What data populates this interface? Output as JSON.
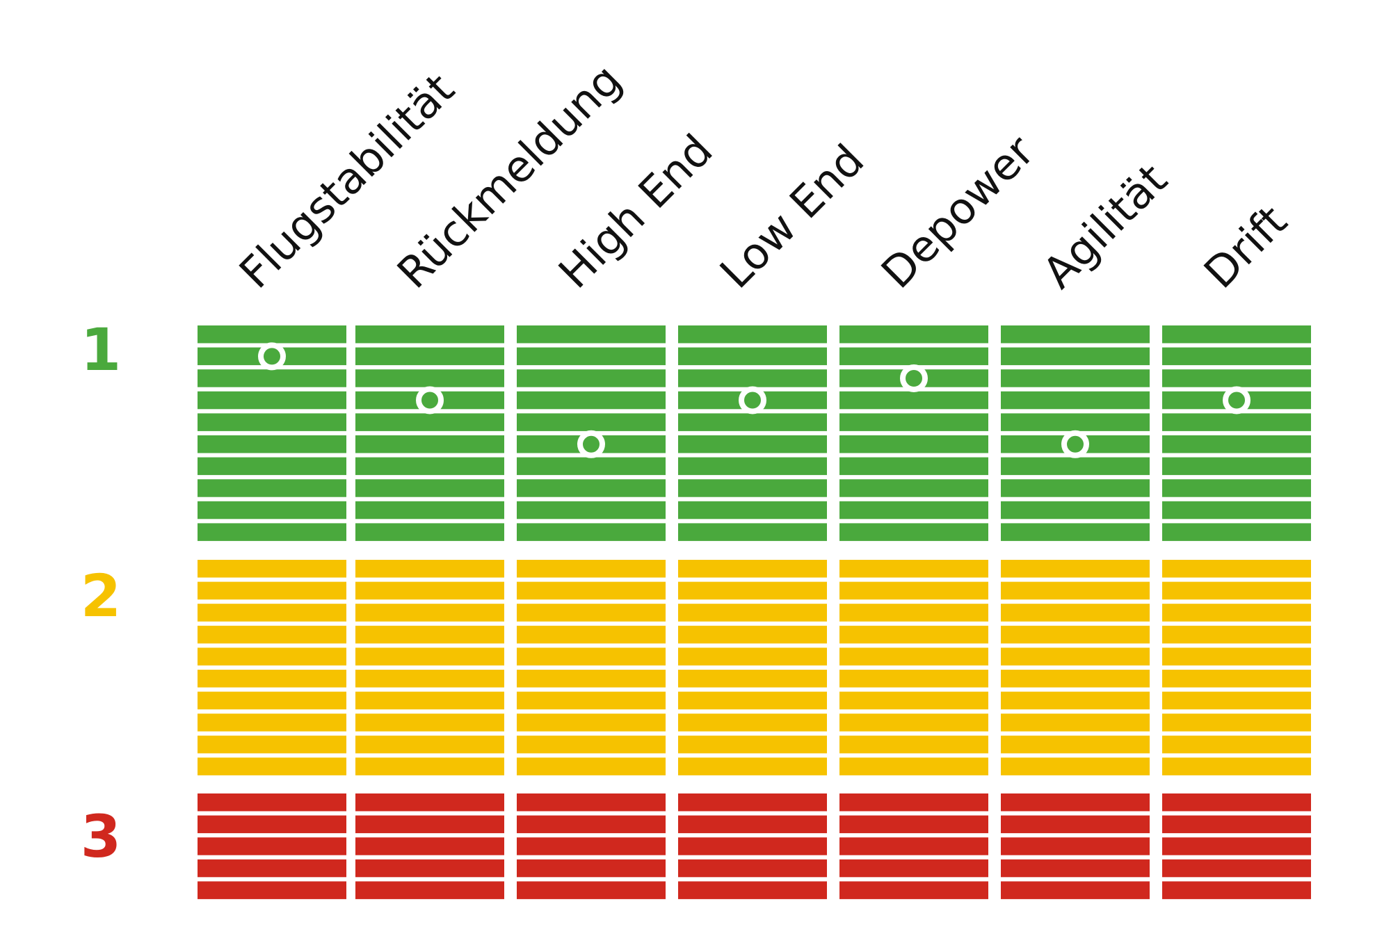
{
  "chart_data": {
    "type": "table",
    "categories": [
      "Flugstabilität",
      "Rückmeldung",
      "High End",
      "Low End",
      "Depower",
      "Agilität",
      "Drift"
    ],
    "bands": [
      {
        "label": "1",
        "color": "#4aa93d",
        "stripes": 10
      },
      {
        "label": "2",
        "color": "#f6c200",
        "stripes": 10
      },
      {
        "label": "3",
        "color": "#d0281e",
        "stripes": 5
      }
    ],
    "values": [
      2,
      4,
      6,
      4,
      3,
      6,
      4
    ],
    "marker_color": "#ffffff"
  }
}
